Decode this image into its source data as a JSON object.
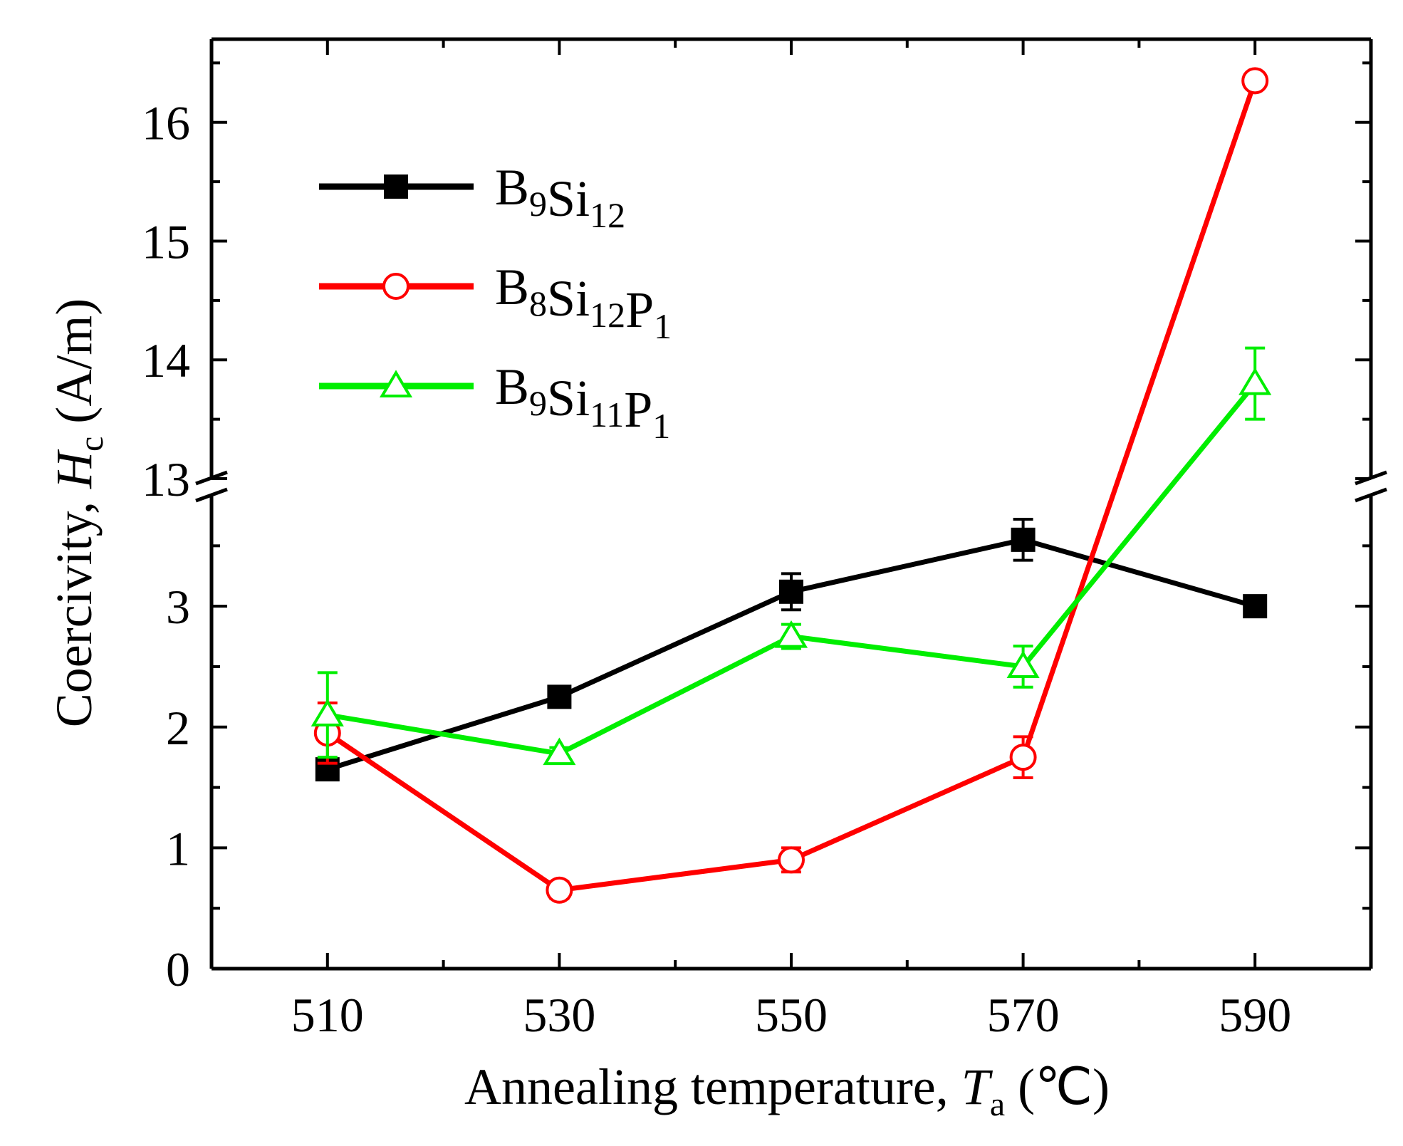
{
  "chart_data": {
    "type": "line",
    "title": "",
    "xlabel": {
      "main": "Annealing temperature, ",
      "var": "T",
      "sub": "a",
      "unit": " (℃)"
    },
    "ylabel": {
      "main": "Coercivity, ",
      "var": "H",
      "sub": "c",
      "unit": " (A/m)"
    },
    "x": [
      510,
      530,
      550,
      570,
      590
    ],
    "xlim": [
      500,
      600
    ],
    "xticks": [
      "510",
      "530",
      "550",
      "570",
      "590"
    ],
    "ylim_lower": [
      0,
      3.95
    ],
    "ylim_upper": [
      13,
      16.7
    ],
    "yticks_lower": [
      "0",
      "1",
      "2",
      "3"
    ],
    "yticks_upper": [
      "13",
      "14",
      "15",
      "16"
    ],
    "axis_break": true,
    "legend_position": "top-left",
    "series": [
      {
        "name": "B9Si12",
        "base": "B",
        "parts": [
          [
            "B",
            "9"
          ],
          [
            "Si",
            "12"
          ]
        ],
        "color": "#000000",
        "marker": "square-filled",
        "values": [
          1.65,
          2.25,
          3.12,
          3.55,
          3.0
        ],
        "errors": [
          0.0,
          0.0,
          0.15,
          0.17,
          0.0
        ]
      },
      {
        "name": "B8Si12P1",
        "parts": [
          [
            "B",
            "8"
          ],
          [
            "Si",
            "12"
          ],
          [
            "P",
            "1"
          ]
        ],
        "color": "#ff0000",
        "marker": "circle-open",
        "values": [
          1.95,
          0.65,
          0.9,
          1.75,
          16.35
        ],
        "errors": [
          0.25,
          0.07,
          0.1,
          0.17,
          0.0
        ]
      },
      {
        "name": "B9Si11P1",
        "parts": [
          [
            "B",
            "9"
          ],
          [
            "Si",
            "11"
          ],
          [
            "P",
            "1"
          ]
        ],
        "color": "#00ee00",
        "marker": "triangle-open",
        "values": [
          2.1,
          1.78,
          2.75,
          2.5,
          13.8
        ],
        "errors": [
          0.35,
          0.05,
          0.1,
          0.17,
          0.3
        ]
      }
    ]
  }
}
